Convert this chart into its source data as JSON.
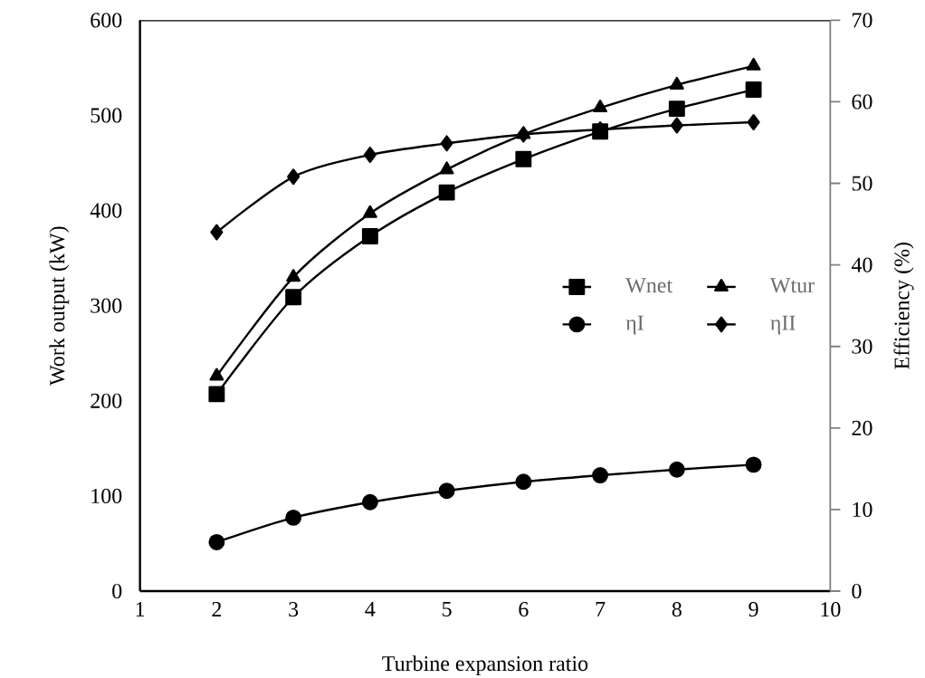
{
  "chart_data": {
    "type": "line",
    "xlabel": "Turbine expansion ratio",
    "ylabel": "Work output (kW)",
    "y2label": "Efficiency (%)",
    "x": [
      2,
      3,
      4,
      5,
      6,
      7,
      8,
      9
    ],
    "series": [
      {
        "name": "Wnet",
        "color": "#000000",
        "marker": "square",
        "values": [
          207,
          309,
          373,
          419,
          454,
          483,
          507,
          527
        ]
      },
      {
        "name": "Wtur",
        "color": "#000000",
        "marker": "triangle",
        "values": [
          226,
          330,
          397,
          443,
          480,
          508,
          532,
          552
        ]
      },
      {
        "name": "ηI",
        "color": "#000000",
        "marker": "circle",
        "axis": "y2",
        "values": [
          6.0,
          9.0,
          10.9,
          12.3,
          13.4,
          14.2,
          14.9,
          15.5
        ]
      },
      {
        "name": "ηII",
        "color": "#000000",
        "marker": "diamond",
        "axis": "y2",
        "values": [
          44.0,
          50.8,
          53.5,
          54.9,
          56.0,
          56.6,
          57.1,
          57.5
        ]
      }
    ],
    "xlim": [
      1,
      10
    ],
    "xticks": [
      1,
      2,
      3,
      4,
      5,
      6,
      7,
      8,
      9,
      10
    ],
    "ylim": [
      0,
      600
    ],
    "yticks": [
      0,
      100,
      200,
      300,
      400,
      500,
      600
    ],
    "y2lim": [
      0,
      70
    ],
    "y2ticks": [
      0,
      10,
      20,
      30,
      40,
      50,
      60,
      70
    ],
    "legend": "right",
    "grid": false,
    "line_style": "solid"
  }
}
